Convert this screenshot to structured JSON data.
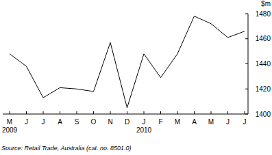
{
  "chart_data": {
    "type": "line",
    "y_label": "$m",
    "source": "Source: Retail Trade, Australia (cat. no. 8501.0)",
    "categories": [
      "M",
      "J",
      "J",
      "A",
      "S",
      "O",
      "N",
      "D",
      "J",
      "F",
      "M",
      "A",
      "M",
      "J",
      "J"
    ],
    "x_groups": [
      {
        "label": "2009",
        "start": 0
      },
      {
        "label": "2010",
        "start": 8
      }
    ],
    "values": [
      1448,
      1438,
      1413,
      1421,
      1420,
      1418,
      1457,
      1405,
      1448,
      1429,
      1448,
      1478,
      1472,
      1461,
      1466
    ],
    "color": "#000000",
    "ylim": [
      1400,
      1480
    ],
    "yticks": [
      1400,
      1420,
      1440,
      1460,
      1480
    ],
    "grid": false
  }
}
